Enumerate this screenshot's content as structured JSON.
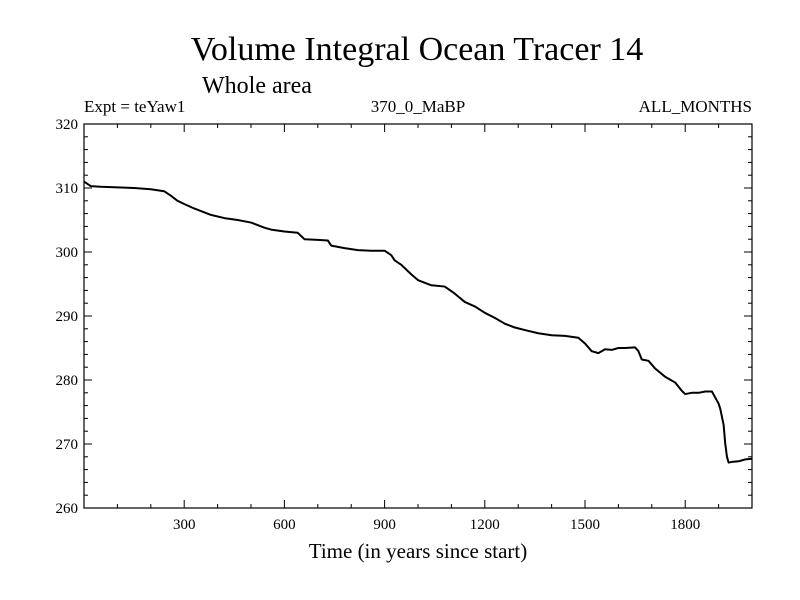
{
  "chart_data": {
    "type": "line",
    "title": "Volume Integral Ocean Tracer 14",
    "subtitle": "Whole area",
    "header_left": "Expt = teYaw1",
    "header_center": "370_0_MaBP",
    "header_right": "ALL_MONTHS",
    "xlabel": "Time (in years since start)",
    "ylabel": "",
    "xlim": [
      0,
      2000
    ],
    "ylim": [
      260,
      320
    ],
    "xticks": [
      300,
      600,
      900,
      1200,
      1500,
      1800
    ],
    "xtick_labels": [
      "300",
      "600",
      "900",
      "1200",
      "1500",
      "1800"
    ],
    "yticks": [
      260,
      270,
      280,
      290,
      300,
      310,
      320
    ],
    "ytick_labels": [
      "260",
      "270",
      "280",
      "290",
      "300",
      "310",
      "320"
    ],
    "series": [
      {
        "name": "teYaw1",
        "color": "#000000",
        "x": [
          0,
          20,
          50,
          100,
          150,
          200,
          240,
          260,
          280,
          300,
          330,
          380,
          420,
          460,
          500,
          540,
          560,
          600,
          640,
          660,
          700,
          730,
          740,
          780,
          820,
          860,
          900,
          920,
          930,
          950,
          980,
          1000,
          1040,
          1080,
          1110,
          1140,
          1170,
          1200,
          1230,
          1260,
          1290,
          1320,
          1360,
          1400,
          1440,
          1480,
          1500,
          1520,
          1540,
          1560,
          1580,
          1600,
          1620,
          1650,
          1660,
          1670,
          1690,
          1710,
          1740,
          1770,
          1790,
          1800,
          1820,
          1840,
          1860,
          1880,
          1900,
          1905,
          1915,
          1920,
          1925,
          1930,
          1940,
          1960,
          1980,
          2000
        ],
        "y": [
          311,
          310.3,
          310.2,
          310.1,
          310,
          309.8,
          309.5,
          308.8,
          308,
          307.5,
          306.8,
          305.8,
          305.3,
          305,
          304.6,
          303.8,
          303.5,
          303.2,
          303,
          302,
          301.9,
          301.8,
          301,
          300.6,
          300.3,
          300.2,
          300.2,
          299.5,
          298.7,
          298,
          296.5,
          295.6,
          294.8,
          294.6,
          293.5,
          292.2,
          291.5,
          290.5,
          289.7,
          288.8,
          288.2,
          287.8,
          287.3,
          287,
          286.9,
          286.6,
          285.7,
          284.5,
          284.2,
          284.8,
          284.7,
          285,
          285,
          285.1,
          284.5,
          283.2,
          283,
          281.8,
          280.5,
          279.6,
          278.3,
          277.8,
          278,
          278,
          278.2,
          278.2,
          276.3,
          275.5,
          273,
          270,
          268,
          267.1,
          267.2,
          267.3,
          267.6,
          267.7
        ]
      }
    ]
  }
}
